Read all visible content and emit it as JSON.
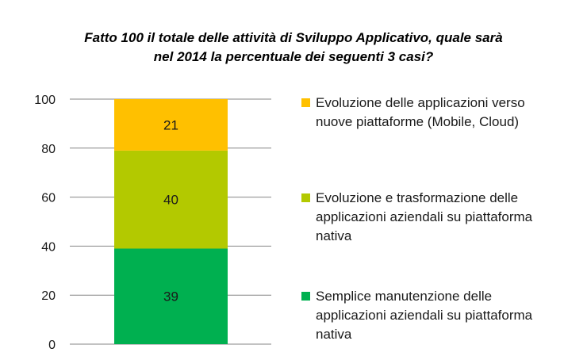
{
  "title": {
    "line1": "Fatto 100 il totale delle attività di Sviluppo Applicativo, quale sarà",
    "line2": "nel 2014 la percentuale dei seguenti 3 casi?"
  },
  "chart_data": {
    "type": "bar",
    "stacked": true,
    "categories": [
      ""
    ],
    "series": [
      {
        "name": "Semplice manutenzione delle applicazioni aziendali su piattaforma nativa",
        "values": [
          39
        ],
        "color": "#00b050"
      },
      {
        "name": "Evoluzione e trasformazione delle applicazioni aziendali su piattaforma nativa",
        "values": [
          40
        ],
        "color": "#b3c900"
      },
      {
        "name": "Evoluzione delle applicazioni verso nuove piattaforme (Mobile, Cloud)",
        "values": [
          21
        ],
        "color": "#ffc000"
      }
    ],
    "ylim": [
      0,
      100
    ],
    "yticks": [
      "0",
      "20",
      "40",
      "60",
      "80",
      "100"
    ],
    "grid": true,
    "legend_position": "right"
  },
  "legend": [
    {
      "lines": [
        "Evoluzione delle applicazioni verso",
        "nuove piattaforme (Mobile, Cloud)"
      ],
      "color": "#ffc000"
    },
    {
      "lines": [
        "Evoluzione e trasformazione delle",
        "applicazioni aziendali su piattaforma",
        "nativa"
      ],
      "color": "#b3c900"
    },
    {
      "lines": [
        "Semplice manutenzione delle",
        "applicazioni aziendali su piattaforma",
        "nativa"
      ],
      "color": "#00b050"
    }
  ]
}
